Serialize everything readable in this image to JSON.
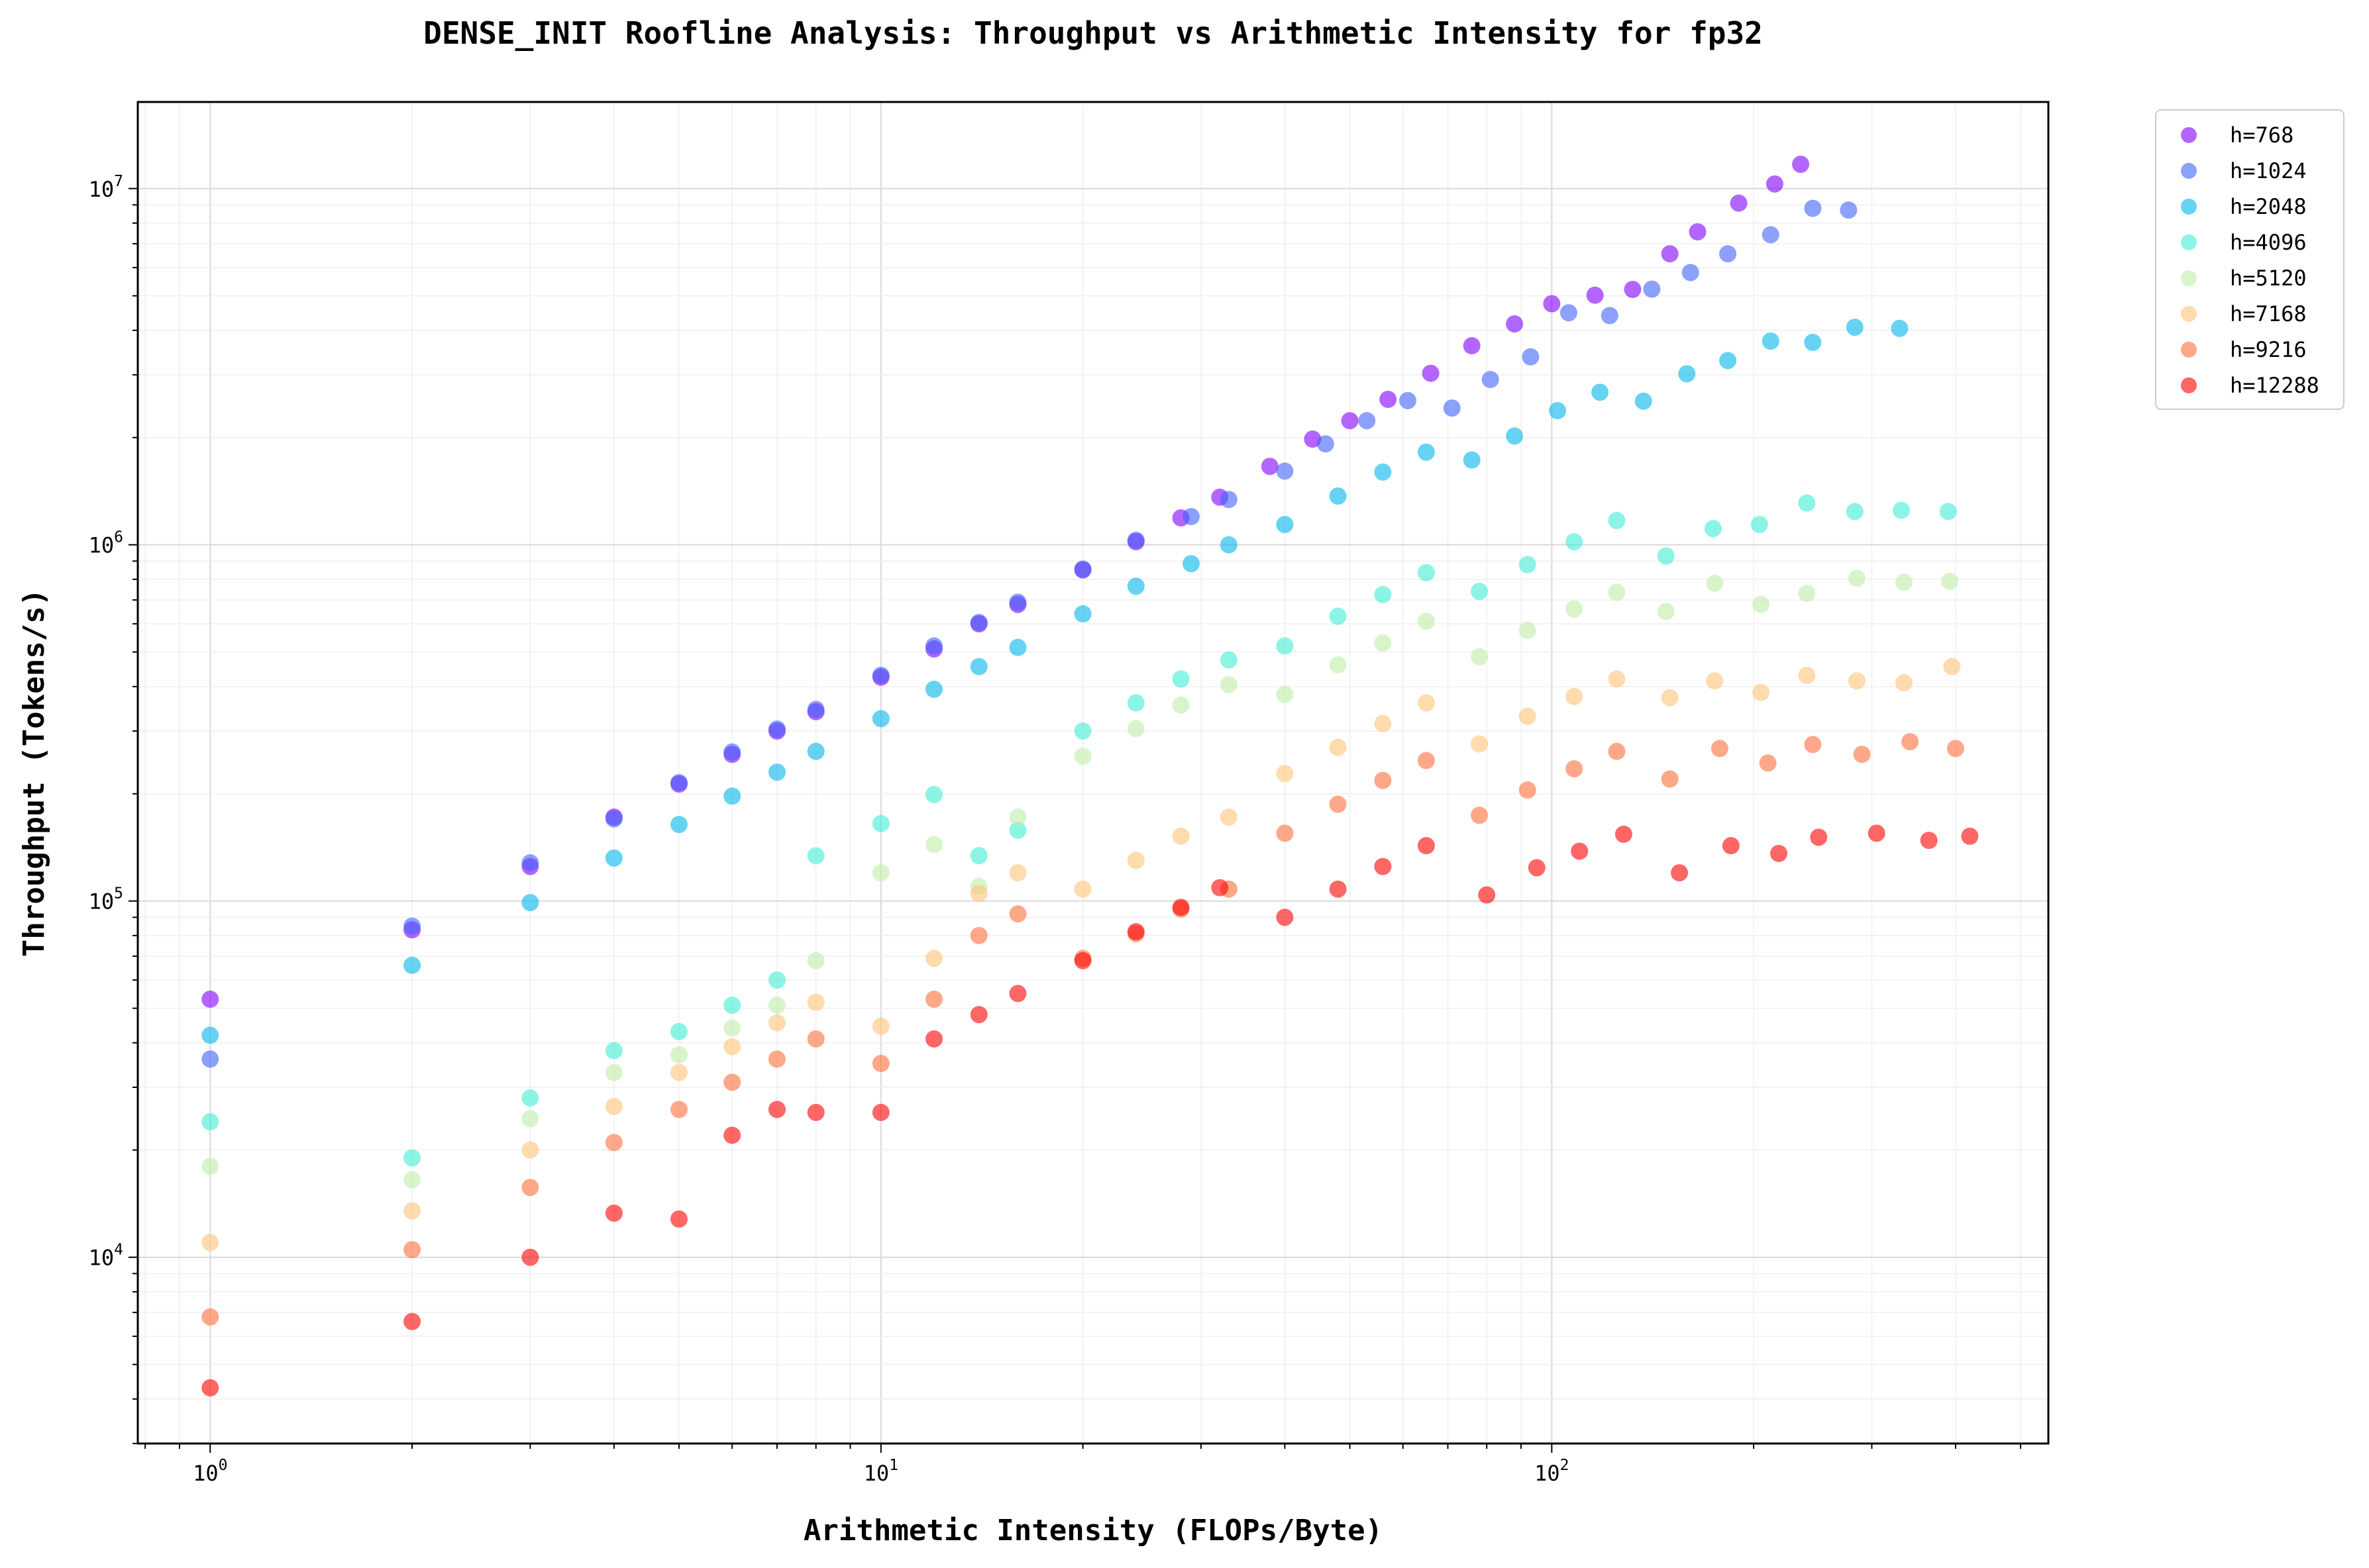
{
  "chart_data": {
    "type": "scatter",
    "title": "DENSE_INIT Roofline Analysis: Throughput vs Arithmetic Intensity for fp32",
    "xlabel": "Arithmetic Intensity (FLOPs/Byte)",
    "ylabel": "Throughput (Tokens/s)",
    "xscale": "log",
    "yscale": "log",
    "xlim": [
      0.78,
      550
    ],
    "ylim": [
      3000,
      17500000
    ],
    "x_ticks": [
      {
        "value": 1,
        "base": "10",
        "exp": "0"
      },
      {
        "value": 10,
        "base": "10",
        "exp": "1"
      },
      {
        "value": 100,
        "base": "10",
        "exp": "2"
      }
    ],
    "y_ticks": [
      {
        "value": 10000,
        "base": "10",
        "exp": "4"
      },
      {
        "value": 100000,
        "base": "10",
        "exp": "5"
      },
      {
        "value": 1000000,
        "base": "10",
        "exp": "6"
      },
      {
        "value": 10000000,
        "base": "10",
        "exp": "7"
      }
    ],
    "grid": true,
    "legend_position": "outside-top-right",
    "series": [
      {
        "name": "h=768",
        "color": "#8000ff",
        "points": [
          [
            1,
            53000
          ],
          [
            2,
            83000
          ],
          [
            3,
            125000
          ],
          [
            4,
            172000
          ],
          [
            5,
            213000
          ],
          [
            6,
            258000
          ],
          [
            7,
            300000
          ],
          [
            8,
            340000
          ],
          [
            10,
            425000
          ],
          [
            12,
            510000
          ],
          [
            14,
            600000
          ],
          [
            16,
            680000
          ],
          [
            20,
            850000
          ],
          [
            24,
            1020000
          ],
          [
            28,
            1190000
          ],
          [
            32,
            1360000
          ],
          [
            38,
            1660000
          ],
          [
            44,
            1980000
          ],
          [
            50,
            2230000
          ],
          [
            57,
            2560000
          ],
          [
            66,
            3030000
          ],
          [
            76,
            3620000
          ],
          [
            88,
            4170000
          ],
          [
            100,
            4750000
          ],
          [
            116,
            5020000
          ],
          [
            132,
            5210000
          ],
          [
            150,
            6560000
          ],
          [
            165,
            7560000
          ],
          [
            190,
            9100000
          ],
          [
            215,
            10300000
          ],
          [
            235,
            11700000
          ]
        ]
      },
      {
        "name": "h=1024",
        "color": "#4062fa",
        "points": [
          [
            1,
            36000
          ],
          [
            2,
            85000
          ],
          [
            3,
            128000
          ],
          [
            4,
            170000
          ],
          [
            5,
            215000
          ],
          [
            6,
            262000
          ],
          [
            7,
            304000
          ],
          [
            8,
            345000
          ],
          [
            10,
            430000
          ],
          [
            12,
            520000
          ],
          [
            14,
            605000
          ],
          [
            16,
            690000
          ],
          [
            20,
            855000
          ],
          [
            24,
            1030000
          ],
          [
            29,
            1200000
          ],
          [
            33,
            1340000
          ],
          [
            40,
            1610000
          ],
          [
            46,
            1920000
          ],
          [
            53,
            2230000
          ],
          [
            61,
            2540000
          ],
          [
            71,
            2420000
          ],
          [
            81,
            2910000
          ],
          [
            93,
            3370000
          ],
          [
            106,
            4480000
          ],
          [
            122,
            4400000
          ],
          [
            141,
            5220000
          ],
          [
            161,
            5810000
          ],
          [
            183,
            6560000
          ],
          [
            212,
            7420000
          ],
          [
            245,
            8800000
          ],
          [
            277,
            8700000
          ]
        ]
      },
      {
        "name": "h=2048",
        "color": "#00b5eb",
        "points": [
          [
            1,
            42000
          ],
          [
            2,
            66000
          ],
          [
            3,
            99000
          ],
          [
            4,
            132000
          ],
          [
            5,
            164000
          ],
          [
            6,
            197000
          ],
          [
            7,
            230000
          ],
          [
            8,
            263000
          ],
          [
            10,
            325000
          ],
          [
            12,
            393000
          ],
          [
            14,
            455000
          ],
          [
            16,
            515000
          ],
          [
            20,
            640000
          ],
          [
            24,
            765000
          ],
          [
            29,
            885000
          ],
          [
            33,
            1000000
          ],
          [
            40,
            1140000
          ],
          [
            48,
            1370000
          ],
          [
            56,
            1600000
          ],
          [
            65,
            1820000
          ],
          [
            76,
            1730000
          ],
          [
            88,
            2020000
          ],
          [
            102,
            2380000
          ],
          [
            118,
            2680000
          ],
          [
            137,
            2530000
          ],
          [
            159,
            3020000
          ],
          [
            183,
            3290000
          ],
          [
            212,
            3730000
          ],
          [
            245,
            3700000
          ],
          [
            283,
            4080000
          ],
          [
            330,
            4050000
          ]
        ]
      },
      {
        "name": "h=4096",
        "color": "#40ecd4",
        "points": [
          [
            1,
            24000
          ],
          [
            2,
            19000
          ],
          [
            3,
            28000
          ],
          [
            4,
            38000
          ],
          [
            5,
            43000
          ],
          [
            6,
            51000
          ],
          [
            7,
            60000
          ],
          [
            8,
            134000
          ],
          [
            10,
            165000
          ],
          [
            12,
            199000
          ],
          [
            14,
            134000
          ],
          [
            16,
            158000
          ],
          [
            20,
            300000
          ],
          [
            24,
            360000
          ],
          [
            28,
            420000
          ],
          [
            33,
            475000
          ],
          [
            40,
            520000
          ],
          [
            48,
            630000
          ],
          [
            56,
            725000
          ],
          [
            65,
            835000
          ],
          [
            78,
            740000
          ],
          [
            92,
            880000
          ],
          [
            108,
            1020000
          ],
          [
            125,
            1170000
          ],
          [
            148,
            930000
          ],
          [
            174,
            1110000
          ],
          [
            204,
            1140000
          ],
          [
            240,
            1310000
          ],
          [
            283,
            1240000
          ],
          [
            332,
            1250000
          ],
          [
            390,
            1240000
          ]
        ]
      },
      {
        "name": "h=5120",
        "color": "#c0eca8",
        "points": [
          [
            1,
            18000
          ],
          [
            2,
            16500
          ],
          [
            3,
            24500
          ],
          [
            4,
            33000
          ],
          [
            5,
            37000
          ],
          [
            6,
            44000
          ],
          [
            7,
            51000
          ],
          [
            8,
            68000
          ],
          [
            10,
            120000
          ],
          [
            12,
            144000
          ],
          [
            14,
            110000
          ],
          [
            16,
            172000
          ],
          [
            20,
            255000
          ],
          [
            24,
            305000
          ],
          [
            28,
            355000
          ],
          [
            33,
            405000
          ],
          [
            40,
            380000
          ],
          [
            48,
            460000
          ],
          [
            56,
            530000
          ],
          [
            65,
            610000
          ],
          [
            78,
            485000
          ],
          [
            92,
            575000
          ],
          [
            108,
            660000
          ],
          [
            125,
            735000
          ],
          [
            148,
            650000
          ],
          [
            175,
            780000
          ],
          [
            205,
            680000
          ],
          [
            240,
            730000
          ],
          [
            285,
            805000
          ],
          [
            335,
            785000
          ],
          [
            392,
            790000
          ]
        ]
      },
      {
        "name": "h=7168",
        "color": "#ffc378",
        "points": [
          [
            1,
            11000
          ],
          [
            2,
            13500
          ],
          [
            3,
            20000
          ],
          [
            4,
            26500
          ],
          [
            5,
            33000
          ],
          [
            6,
            39000
          ],
          [
            7,
            45500
          ],
          [
            8,
            52000
          ],
          [
            10,
            44500
          ],
          [
            12,
            69000
          ],
          [
            14,
            105000
          ],
          [
            16,
            120000
          ],
          [
            20,
            108000
          ],
          [
            24,
            130000
          ],
          [
            28,
            152000
          ],
          [
            33,
            172000
          ],
          [
            40,
            228000
          ],
          [
            48,
            270000
          ],
          [
            56,
            315000
          ],
          [
            65,
            360000
          ],
          [
            78,
            276000
          ],
          [
            92,
            330000
          ],
          [
            108,
            375000
          ],
          [
            125,
            420000
          ],
          [
            150,
            372000
          ],
          [
            175,
            415000
          ],
          [
            205,
            385000
          ],
          [
            240,
            430000
          ],
          [
            285,
            415000
          ],
          [
            335,
            410000
          ],
          [
            395,
            455000
          ]
        ]
      },
      {
        "name": "h=9216",
        "color": "#ff6e3a",
        "points": [
          [
            1,
            6800
          ],
          [
            2,
            10500
          ],
          [
            3,
            15700
          ],
          [
            4,
            21000
          ],
          [
            5,
            26000
          ],
          [
            6,
            31000
          ],
          [
            7,
            36000
          ],
          [
            8,
            41000
          ],
          [
            10,
            35000
          ],
          [
            12,
            53000
          ],
          [
            14,
            80000
          ],
          [
            16,
            92000
          ],
          [
            20,
            69000
          ],
          [
            24,
            81000
          ],
          [
            28,
            95000
          ],
          [
            33,
            108000
          ],
          [
            40,
            155000
          ],
          [
            48,
            187000
          ],
          [
            56,
            218000
          ],
          [
            65,
            248000
          ],
          [
            78,
            174000
          ],
          [
            92,
            205000
          ],
          [
            108,
            235000
          ],
          [
            125,
            263000
          ],
          [
            150,
            220000
          ],
          [
            178,
            268000
          ],
          [
            210,
            244000
          ],
          [
            245,
            275000
          ],
          [
            290,
            258000
          ],
          [
            342,
            280000
          ],
          [
            400,
            268000
          ]
        ]
      },
      {
        "name": "h=12288",
        "color": "#ff0000",
        "points": [
          [
            1,
            4300
          ],
          [
            2,
            6600
          ],
          [
            3,
            10000
          ],
          [
            4,
            13300
          ],
          [
            5,
            12800
          ],
          [
            6,
            22000
          ],
          [
            7,
            26000
          ],
          [
            8,
            25500
          ],
          [
            10,
            25500
          ],
          [
            12,
            41000
          ],
          [
            14,
            48000
          ],
          [
            16,
            55000
          ],
          [
            20,
            68000
          ],
          [
            24,
            82000
          ],
          [
            28,
            96000
          ],
          [
            32,
            109000
          ],
          [
            40,
            90000
          ],
          [
            48,
            108000
          ],
          [
            56,
            125000
          ],
          [
            65,
            143000
          ],
          [
            80,
            104000
          ],
          [
            95,
            124000
          ],
          [
            110,
            138000
          ],
          [
            128,
            154000
          ],
          [
            155,
            120000
          ],
          [
            185,
            143000
          ],
          [
            218,
            136000
          ],
          [
            250,
            151000
          ],
          [
            305,
            155000
          ],
          [
            365,
            148000
          ],
          [
            420,
            152000
          ]
        ]
      }
    ]
  }
}
